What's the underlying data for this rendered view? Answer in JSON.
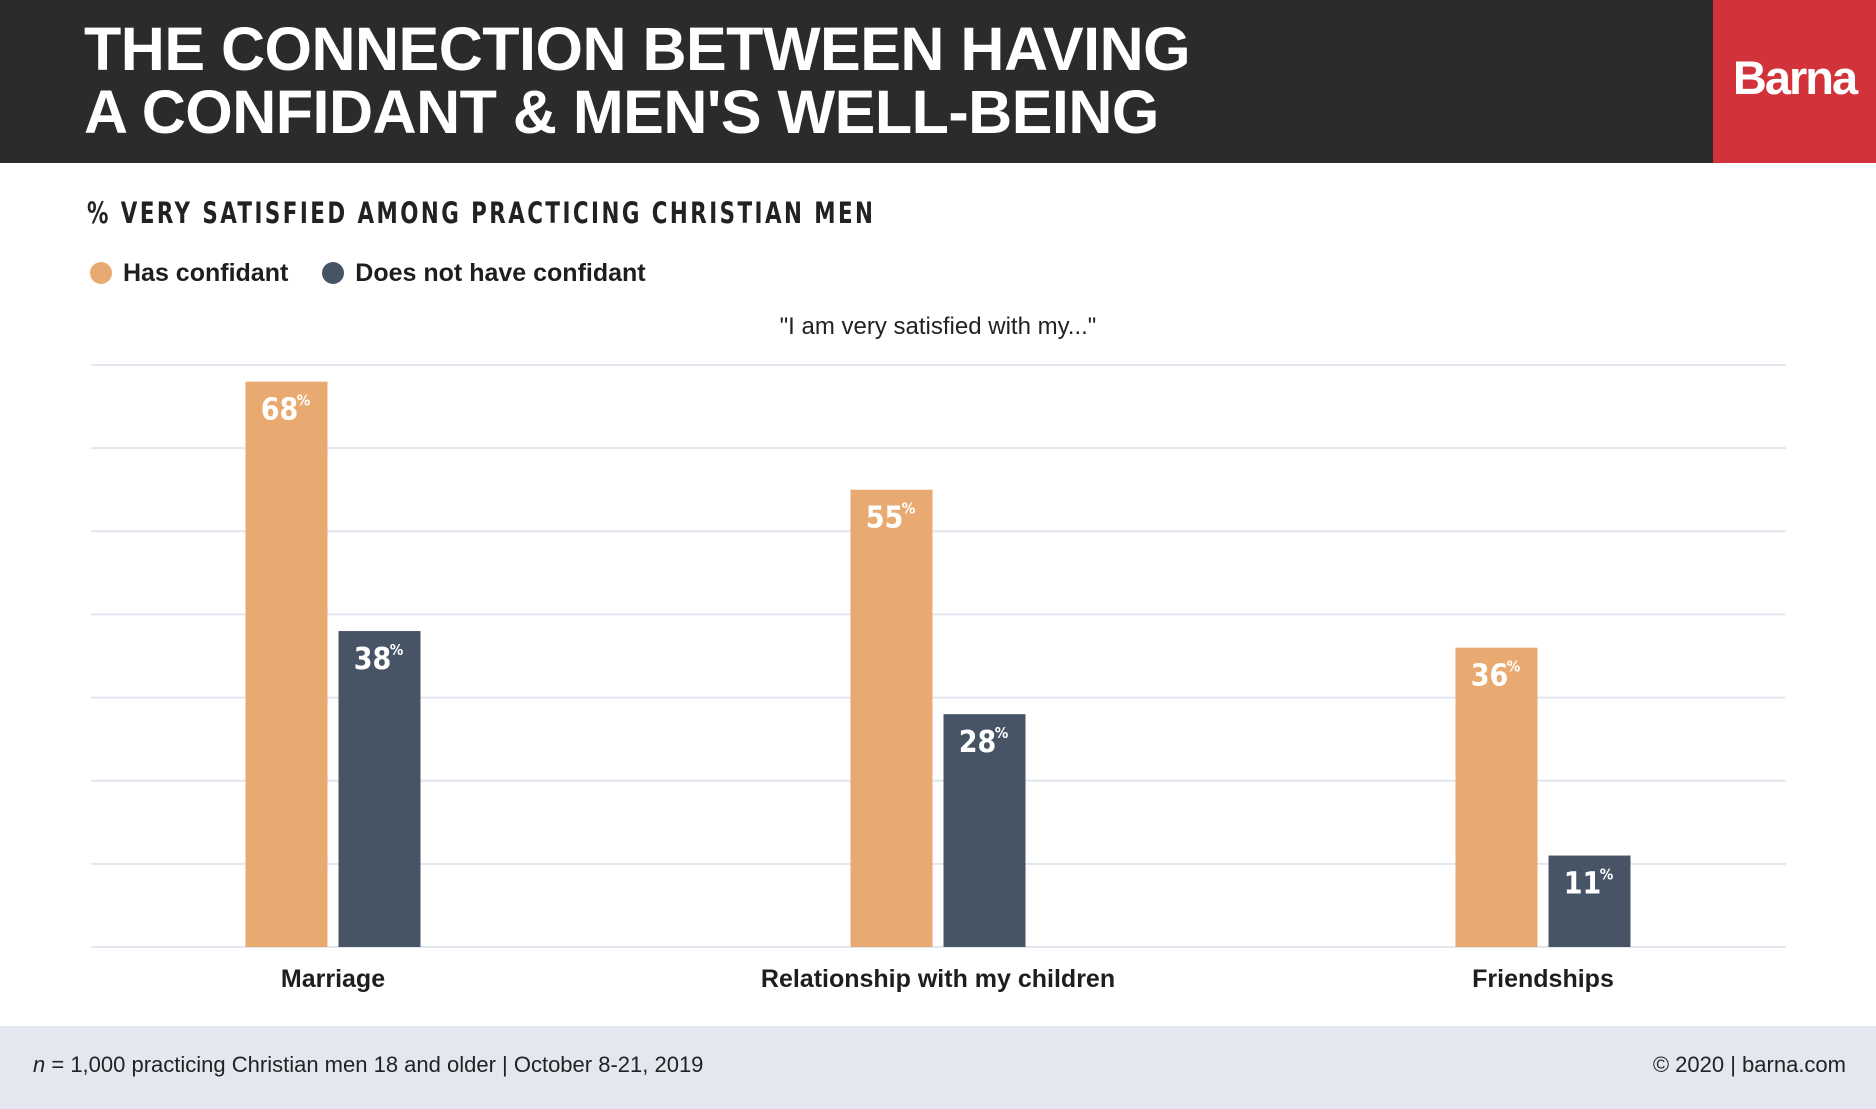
{
  "header": {
    "title_line1": "THE CONNECTION BETWEEN HAVING",
    "title_line2": "A CONFIDANT & MEN'S WELL-BEING",
    "logo": "Barna",
    "background_color": "#2b2b2b",
    "logo_color": "#d2333b"
  },
  "chart_data": {
    "type": "bar",
    "title": "% VERY SATISFIED AMONG PRACTICING CHRISTIAN MEN",
    "subtitle": "\"I am very satisfied with my...\"",
    "categories": [
      "Marriage",
      "Relationship with my children",
      "Friendships"
    ],
    "series": [
      {
        "name": "Has confidant",
        "values": [
          68,
          55,
          36
        ],
        "labels": [
          "68",
          "55",
          "36"
        ],
        "color": "#e9aa72"
      },
      {
        "name": "Does not have confidant",
        "values": [
          38,
          28,
          11
        ],
        "labels": [
          "38",
          "28",
          "11"
        ],
        "color": "#475466"
      }
    ],
    "value_suffix": "%",
    "ylim": [
      0,
      70
    ],
    "grid": true,
    "legend_position": "top-left"
  },
  "footer": {
    "n_label": "n",
    "sample": " = 1,000 practicing Christian men 18 and older | October 8-21, 2019",
    "copyright": "© 2020 | barna.com"
  }
}
